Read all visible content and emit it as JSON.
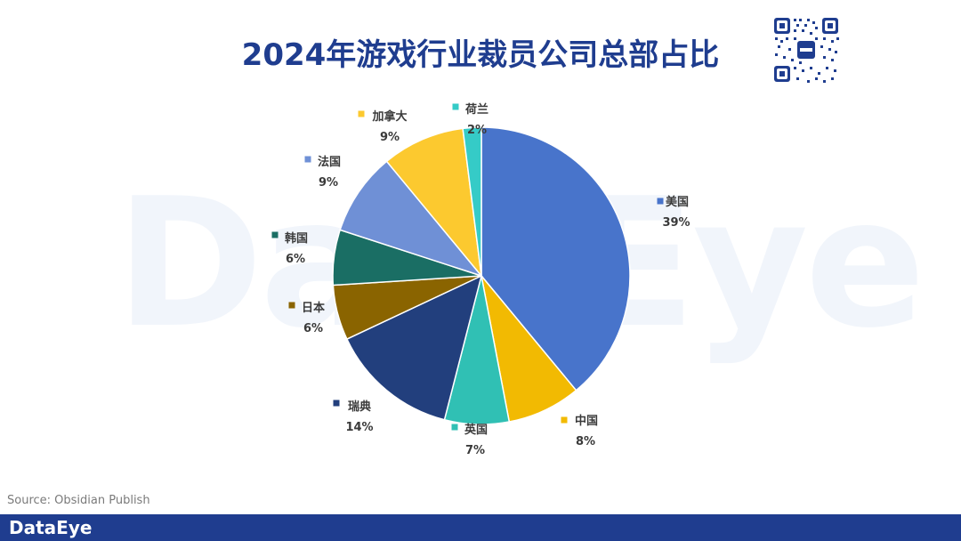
{
  "watermark": "DataEye",
  "title": "2024年游戏行业裁员公司总部占比",
  "source": "Source: Obsidian Publish",
  "footer": {
    "logo": "DataEye"
  },
  "colors": {
    "brand": "#1f3d8f"
  },
  "chart_data": {
    "type": "pie",
    "title": "2024年游戏行业裁员公司总部占比",
    "slices": [
      {
        "label": "美国",
        "value": 39,
        "display": "39%",
        "color": "#4874cb"
      },
      {
        "label": "中国",
        "value": 8,
        "display": "8%",
        "color": "#f2ba02"
      },
      {
        "label": "英国",
        "value": 7,
        "display": "7%",
        "color": "#30c0b4"
      },
      {
        "label": "瑞典",
        "value": 14,
        "display": "14%",
        "color": "#223f7d"
      },
      {
        "label": "日本",
        "value": 6,
        "display": "6%",
        "color": "#8a6400"
      },
      {
        "label": "韩国",
        "value": 6,
        "display": "6%",
        "color": "#1a6e64"
      },
      {
        "label": "法国",
        "value": 9,
        "display": "9%",
        "color": "#6f90d6"
      },
      {
        "label": "加拿大",
        "value": 9,
        "display": "9%",
        "color": "#fcc92f"
      },
      {
        "label": "荷兰",
        "value": 2,
        "display": "2%",
        "color": "#35cbc7"
      }
    ]
  }
}
